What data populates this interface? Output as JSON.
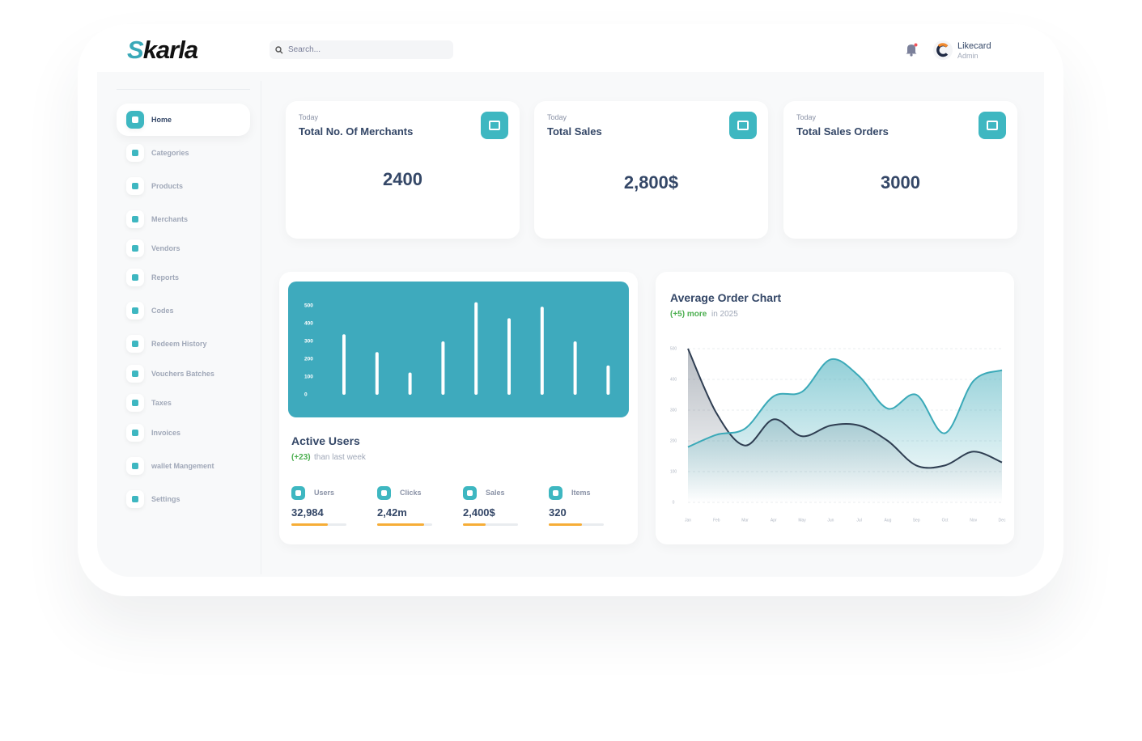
{
  "header": {
    "logo": "Skarla",
    "search_placeholder": "Search...",
    "user_name": "Likecard",
    "user_role": "Admin"
  },
  "sidebar": {
    "items": [
      "Home",
      "Categories",
      "Products",
      "Merchants",
      "Vendors",
      "Reports",
      "Codes",
      "Redeem History",
      "Vouchers Batches",
      "Taxes",
      "Invoices",
      "wallet Mangement",
      "Settings"
    ]
  },
  "stats": [
    {
      "period": "Today",
      "title": "Total No. Of Merchants",
      "value": 2400
    },
    {
      "period": "Today",
      "title": "Total Sales",
      "value": "2,800$"
    },
    {
      "period": "Today",
      "title": "Total Sales Orders",
      "value": 3000
    }
  ],
  "active_users": {
    "title": "Active Users",
    "change": "(+23)",
    "change_text": "than last week",
    "metrics": [
      {
        "label": "Users",
        "value": "32,984",
        "progress": 66
      },
      {
        "label": "Clicks",
        "value": "2,42m",
        "progress": 86
      },
      {
        "label": "Sales",
        "value": "2,400$",
        "progress": 41
      },
      {
        "label": "Items",
        "value": "320",
        "progress": 60
      }
    ]
  },
  "chart_data": [
    {
      "type": "bar",
      "values": [
        340,
        240,
        125,
        300,
        520,
        430,
        495,
        300,
        165
      ],
      "color": "#ffffff",
      "ylim": [
        0,
        550
      ],
      "yticks": [
        0,
        100,
        200,
        300,
        400,
        500
      ]
    },
    {
      "type": "area",
      "title": "Average Order Chart",
      "subtitle_highlight": "(+5) more",
      "subtitle": "in 2025",
      "categories": [
        "Jan",
        "Feb",
        "Mar",
        "Apr",
        "May",
        "Jun",
        "Jul",
        "Aug",
        "Sep",
        "Oct",
        "Nov",
        "Dec"
      ],
      "series": [
        {
          "color": "#2f3e52",
          "values": [
            500,
            290,
            185,
            270,
            215,
            250,
            250,
            200,
            120,
            120,
            165,
            130
          ]
        },
        {
          "color": "#3aa9b8",
          "values": [
            180,
            220,
            240,
            345,
            360,
            465,
            410,
            305,
            350,
            225,
            395,
            430
          ]
        }
      ],
      "ylim": [
        0,
        500
      ],
      "yticks": [
        0,
        100,
        200,
        300,
        400,
        500
      ],
      "grid": true
    }
  ]
}
